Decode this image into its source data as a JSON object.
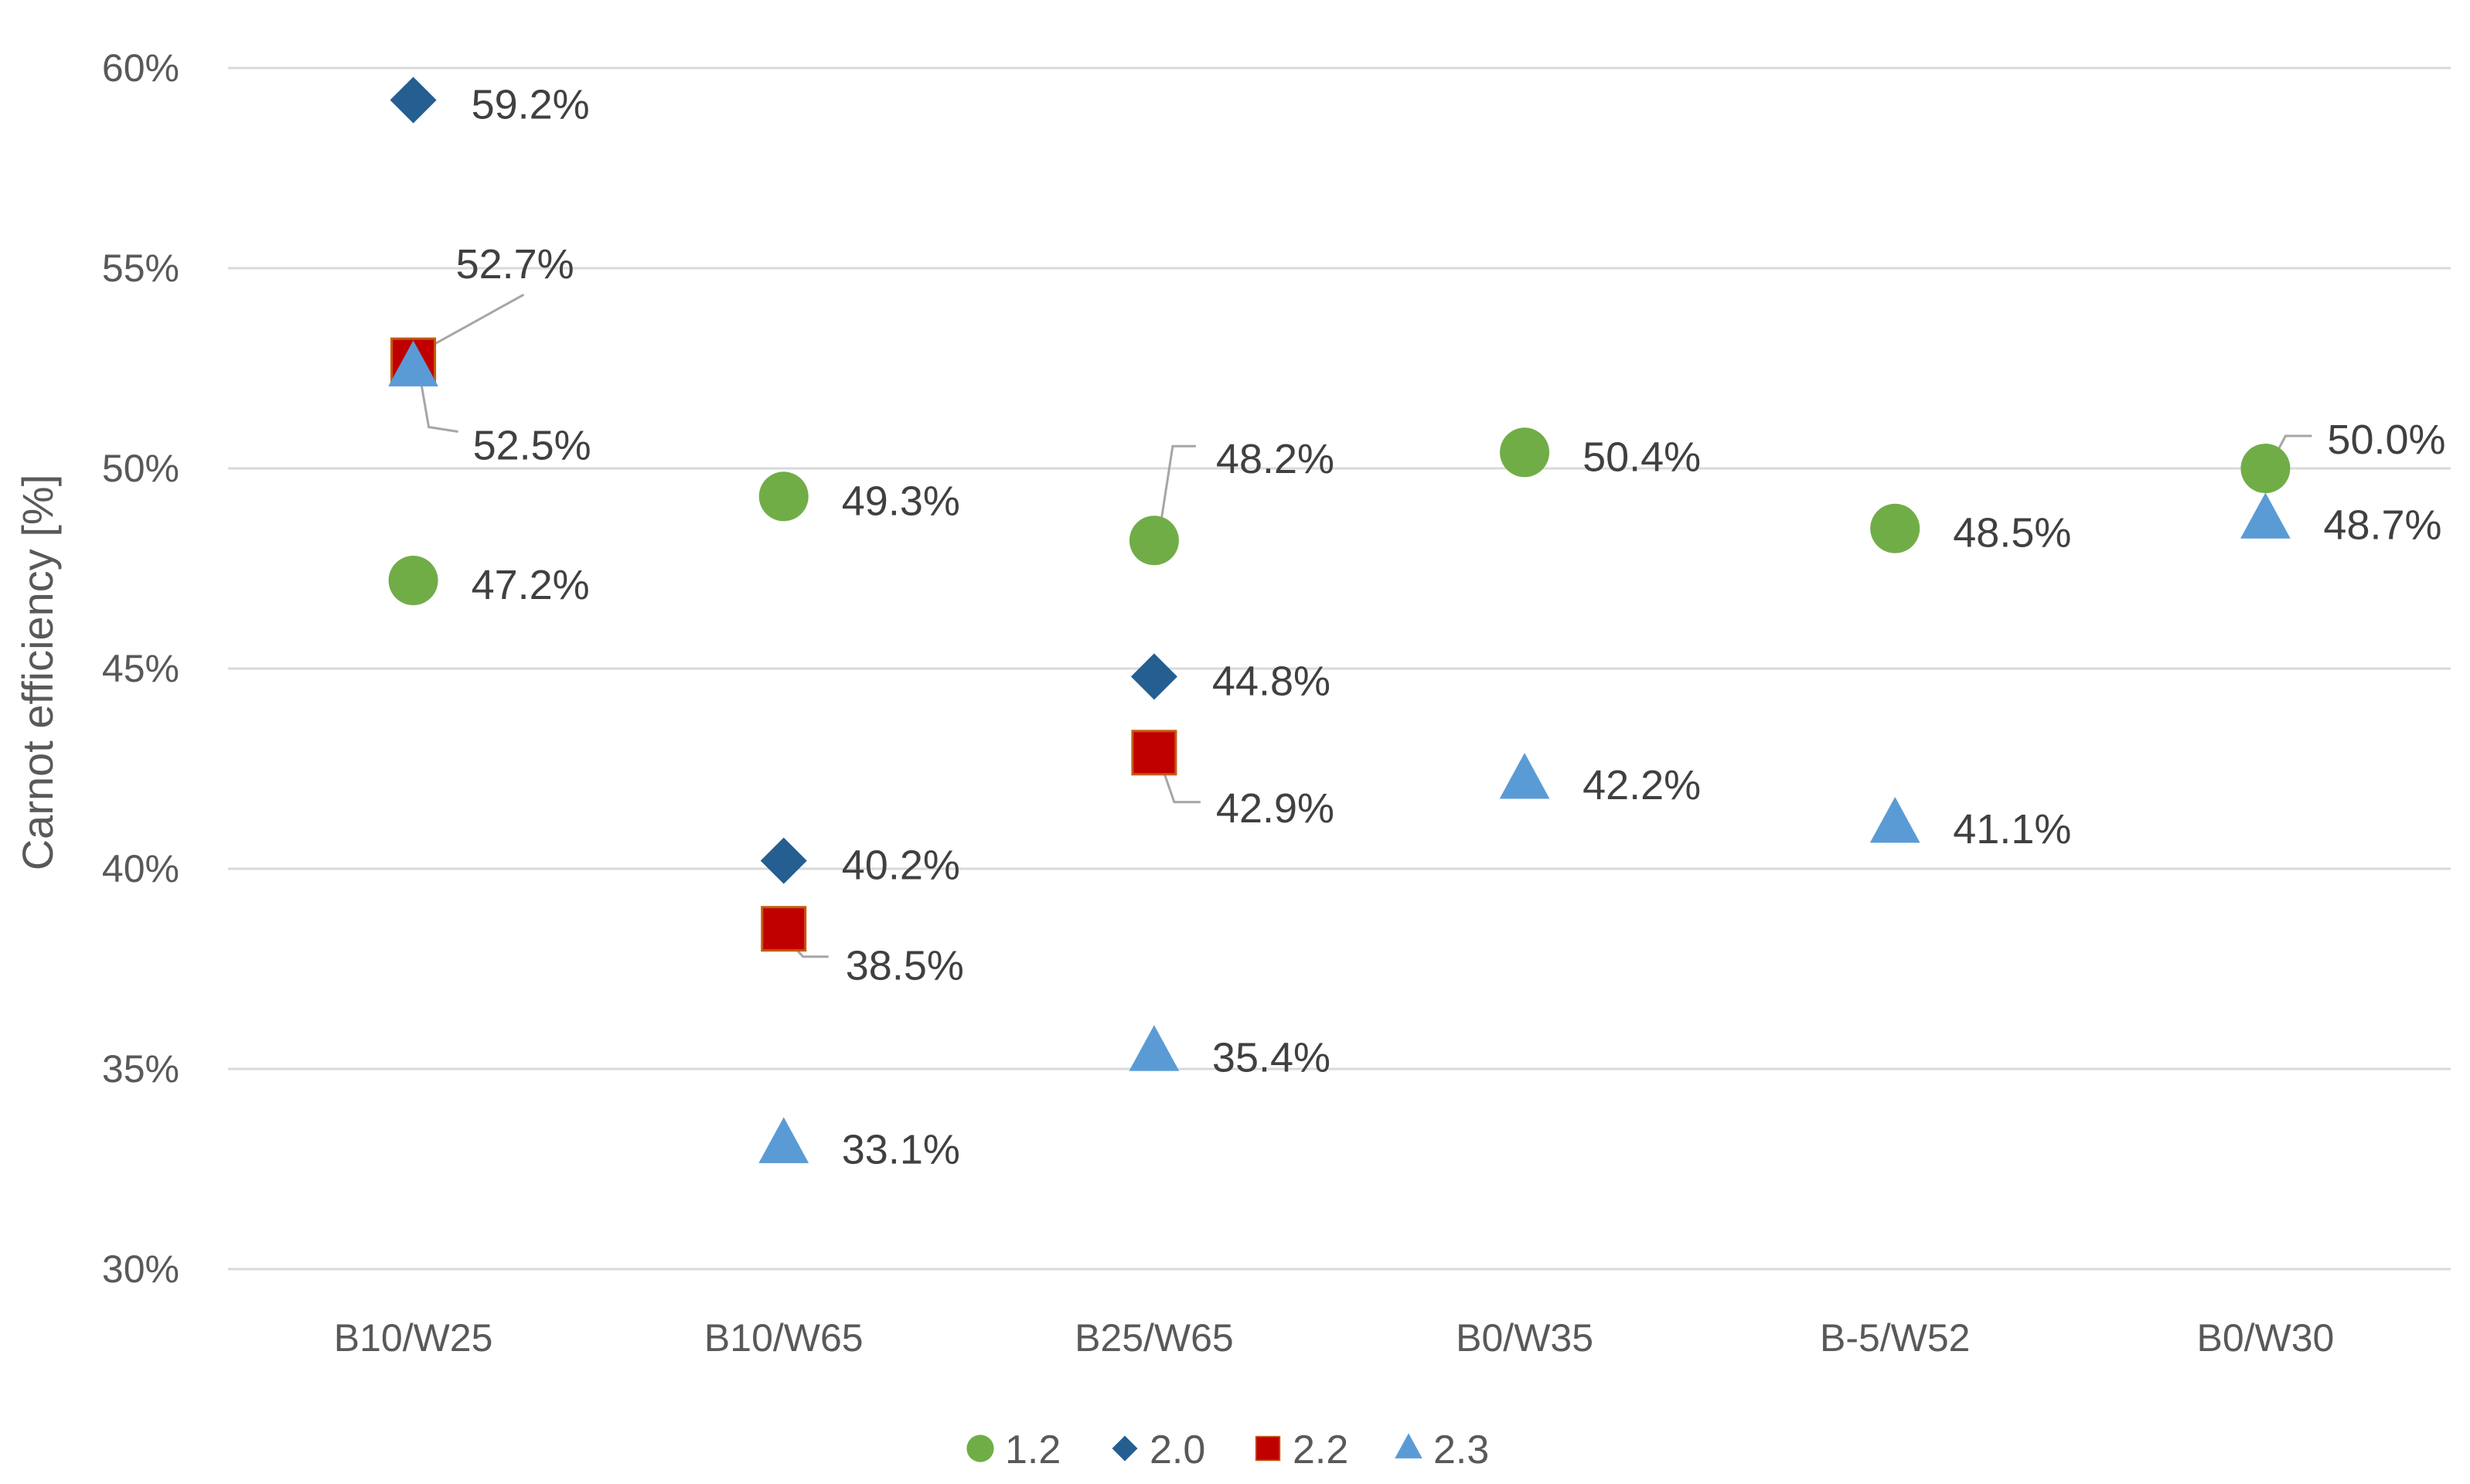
{
  "chart_data": {
    "type": "scatter",
    "title": "",
    "xlabel": "",
    "ylabel": "Carnot efficiency [%]",
    "ylim": [
      30,
      60
    ],
    "yticks": [
      "30%",
      "35%",
      "40%",
      "45%",
      "50%",
      "55%",
      "60%"
    ],
    "categories": [
      "B10/W25",
      "B10/W65",
      "B25/W65",
      "B0/W35",
      "B-5/W52",
      "B0/W30"
    ],
    "grid": true,
    "legend_position": "bottom",
    "series": [
      {
        "name": "1.2",
        "marker": "circle",
        "color": "#70AD47",
        "values": [
          47.2,
          49.3,
          48.2,
          50.4,
          48.5,
          50.0
        ],
        "labels": [
          "47.2%",
          "49.3%",
          "48.2%",
          "50.4%",
          "48.5%",
          "50.0%"
        ]
      },
      {
        "name": "2.0",
        "marker": "diamond",
        "color": "#255E91",
        "values": [
          59.2,
          40.2,
          44.8,
          null,
          null,
          null
        ],
        "labels": [
          "59.2%",
          "40.2%",
          "44.8%",
          null,
          null,
          null
        ]
      },
      {
        "name": "2.2",
        "marker": "square",
        "color": "#C00000",
        "values": [
          52.7,
          38.5,
          42.9,
          null,
          null,
          null
        ],
        "labels": [
          "52.7%",
          "38.5%",
          "42.9%",
          null,
          null,
          null
        ]
      },
      {
        "name": "2.3",
        "marker": "triangle",
        "color": "#5B9BD5",
        "values": [
          52.5,
          33.1,
          35.4,
          42.2,
          41.1,
          48.7
        ],
        "labels": [
          "52.5%",
          "33.1%",
          "35.4%",
          "42.2%",
          "41.1%",
          "48.7%"
        ]
      }
    ]
  }
}
